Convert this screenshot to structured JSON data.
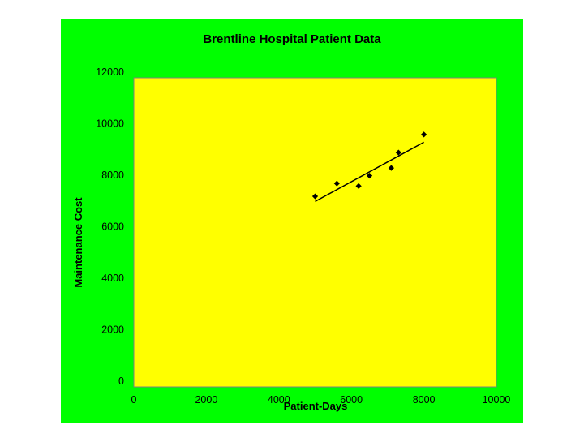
{
  "colors": {
    "chart_background": "#00ff00",
    "plot_background": "#ffff00",
    "marker": "#000000",
    "trendline": "#000000"
  },
  "chart_data": {
    "type": "scatter",
    "title": "Brentline Hospital Patient Data",
    "xlabel": "Patient-Days",
    "ylabel": "Maintenance Cost",
    "xlim": [
      0,
      10000
    ],
    "ylim": [
      0,
      12000
    ],
    "x_ticks": [
      0,
      2000,
      4000,
      6000,
      8000,
      10000
    ],
    "y_ticks": [
      0,
      2000,
      4000,
      6000,
      8000,
      10000,
      12000
    ],
    "grid": false,
    "legend": "none",
    "marker": "diamond",
    "series": [
      {
        "points": [
          {
            "x": 5000,
            "y": 7400
          },
          {
            "x": 5600,
            "y": 7900
          },
          {
            "x": 6200,
            "y": 7800
          },
          {
            "x": 6500,
            "y": 8200
          },
          {
            "x": 7100,
            "y": 8500
          },
          {
            "x": 7300,
            "y": 9100
          },
          {
            "x": 8000,
            "y": 9800
          }
        ]
      }
    ],
    "trendline": {
      "type": "linear",
      "from": {
        "x": 5000,
        "y": 7200
      },
      "to": {
        "x": 8000,
        "y": 9500
      }
    }
  }
}
